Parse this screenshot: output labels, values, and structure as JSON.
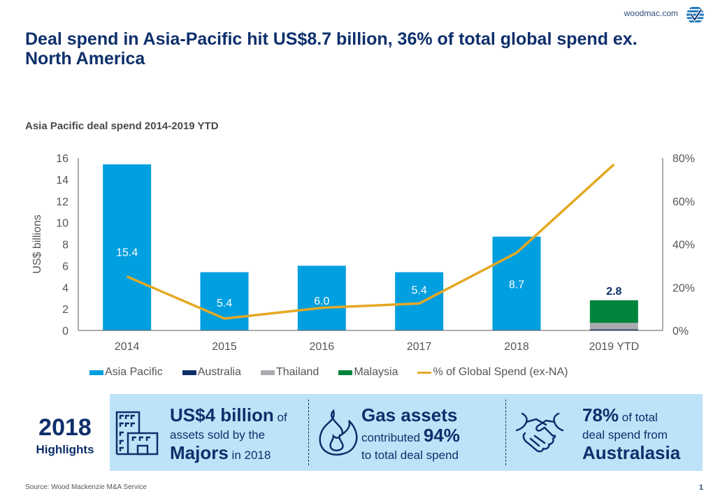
{
  "header": {
    "brand_url": "woodmac.com",
    "logo_icon": "woodmac-globe-check-logo",
    "title": "Deal spend in Asia-Pacific  hit US$8.7 billion, 36% of total global spend ex. North America"
  },
  "chart_data": {
    "type": "bar",
    "title": "Asia Pacific deal spend 2014-2019 YTD",
    "xlabel": "",
    "ylabel": "US$ billions",
    "y2label": "",
    "ylim": [
      0,
      16
    ],
    "y2lim": [
      0,
      80
    ],
    "yticks": [
      "0",
      "2",
      "4",
      "6",
      "8",
      "10",
      "12",
      "14",
      "16"
    ],
    "y2ticks": [
      "0%",
      "20%",
      "40%",
      "60%",
      "80%"
    ],
    "categories": [
      "2014",
      "2015",
      "2016",
      "2017",
      "2018",
      "2019 YTD"
    ],
    "series": [
      {
        "name": "Asia Pacific",
        "kind": "bar",
        "color": "#009fdf",
        "values": [
          15.4,
          5.4,
          6.0,
          5.4,
          8.7,
          0
        ]
      },
      {
        "name": "Australia",
        "kind": "bar",
        "color": "#0e2f6b",
        "values": [
          0,
          0,
          0,
          0,
          0,
          0.1
        ]
      },
      {
        "name": "Thailand",
        "kind": "bar",
        "color": "#a9abae",
        "values": [
          0,
          0,
          0,
          0,
          0,
          0.6
        ]
      },
      {
        "name": "Malaysia",
        "kind": "bar",
        "color": "#00843d",
        "values": [
          0,
          0,
          0,
          0,
          0,
          2.1
        ]
      },
      {
        "name": "% of Global Spend (ex-NA)",
        "kind": "line",
        "axis": "right",
        "color": "#e5a823",
        "values": [
          25,
          5.5,
          10.5,
          12.5,
          36,
          77
        ]
      }
    ],
    "data_labels": [
      "15.4",
      "5.4",
      "6.0",
      "5.4",
      "8.7",
      "2.8"
    ],
    "legend_position": "bottom",
    "grid": false
  },
  "highlights": {
    "year": "2018",
    "label": "Highlights",
    "items": [
      {
        "icon": "buildings-icon",
        "parts": [
          {
            "text": "US$4 billion",
            "style": "big"
          },
          {
            "text": " of",
            "style": "small"
          },
          {
            "text": "assets sold by the",
            "style": "small",
            "br": true
          },
          {
            "text": "Majors",
            "style": "big",
            "br": true
          },
          {
            "text": " in 2018",
            "style": "small"
          }
        ]
      },
      {
        "icon": "flame-icon",
        "parts": [
          {
            "text": "Gas assets",
            "style": "big"
          },
          {
            "text": "contributed ",
            "style": "small",
            "br": true
          },
          {
            "text": "94%",
            "style": "big"
          },
          {
            "text": "to total deal spend",
            "style": "small",
            "br": true
          }
        ]
      },
      {
        "icon": "handshake-icon",
        "parts": [
          {
            "text": "78%",
            "style": "big"
          },
          {
            "text": " of total",
            "style": "small"
          },
          {
            "text": "deal spend from",
            "style": "small",
            "br": true
          },
          {
            "text": "Australasia",
            "style": "big",
            "br": true
          }
        ]
      }
    ]
  },
  "footer": {
    "source": "Source: Wood Mackenzie M&A Service",
    "page_number": "1"
  }
}
